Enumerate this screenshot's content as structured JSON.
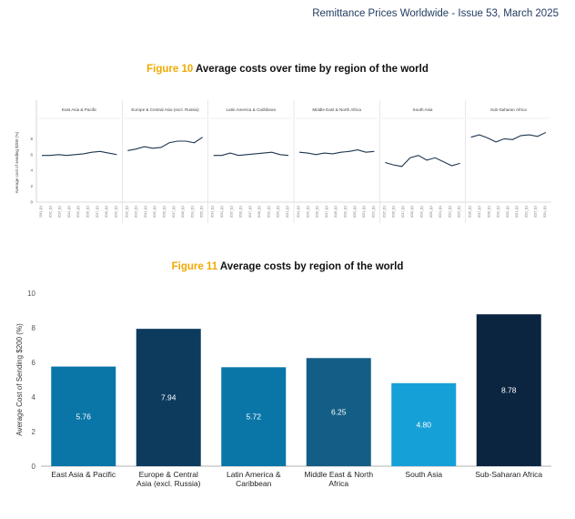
{
  "header": {
    "text": "Remittance Prices Worldwide - Issue 53, March 2025"
  },
  "figure10": {
    "number": "Figure 10",
    "title": "Average costs over time by region of the world"
  },
  "figure11": {
    "number": "Figure 11",
    "title": "Average costs by region of the world"
  },
  "chart_data": [
    {
      "type": "line",
      "title": "Average costs over time by region of the world",
      "ylabel": "Average cost of sending $200 (%)",
      "ylim": [
        0,
        10
      ],
      "yticks": [
        0,
        2,
        4,
        6,
        8
      ],
      "x_ticks": [
        "2011_Q1",
        "2012_Q1",
        "2013_Q1",
        "2014_Q1",
        "2015_Q1",
        "2016_Q1",
        "2017_Q1",
        "2018_Q1",
        "2019_Q1",
        "2020_Q1",
        "2021_Q1",
        "2022_Q1",
        "2023_Q1",
        "2024_Q1",
        "2025_Q1"
      ],
      "series": [
        {
          "name": "East Asia & Pacific",
          "values": [
            5.9,
            5.9,
            6.0,
            5.9,
            6.0,
            6.1,
            6.3,
            6.4,
            6.2,
            6.0
          ]
        },
        {
          "name": "Europe & Central Asia (excl. Russia)",
          "values": [
            6.5,
            6.7,
            7.0,
            6.8,
            6.9,
            7.5,
            7.7,
            7.7,
            7.5,
            8.2
          ]
        },
        {
          "name": "Latin America & Caribbean",
          "values": [
            5.9,
            5.9,
            6.2,
            5.9,
            6.0,
            6.1,
            6.2,
            6.3,
            6.0,
            5.9
          ]
        },
        {
          "name": "Middle East & North Africa",
          "values": [
            6.3,
            6.2,
            6.0,
            6.2,
            6.1,
            6.3,
            6.4,
            6.6,
            6.3,
            6.4
          ]
        },
        {
          "name": "South Asia",
          "values": [
            5.0,
            4.7,
            4.5,
            5.6,
            5.9,
            5.3,
            5.6,
            5.1,
            4.6,
            4.9
          ]
        },
        {
          "name": "Sub-Saharan Africa",
          "values": [
            8.2,
            8.5,
            8.1,
            7.6,
            8.0,
            7.9,
            8.4,
            8.5,
            8.3,
            8.8
          ]
        }
      ]
    },
    {
      "type": "bar",
      "title": "Average costs by region of the world",
      "ylabel": "Average Cost of Sending $200 (%)",
      "ylim": [
        0,
        10
      ],
      "yticks": [
        0,
        2,
        4,
        6,
        8,
        10
      ],
      "categories": [
        [
          "East Asia & Pacific"
        ],
        [
          "Europe & Central",
          "Asia (excl. Russia)"
        ],
        [
          "Latin America &",
          "Caribbean"
        ],
        [
          "Middle East & North",
          "Africa"
        ],
        [
          "South Asia"
        ],
        [
          "Sub-Saharan Africa"
        ]
      ],
      "values": [
        5.76,
        7.94,
        5.72,
        6.25,
        4.8,
        8.78
      ],
      "value_labels": [
        "5.76",
        "7.94",
        "5.72",
        "6.25",
        "4.80",
        "8.78"
      ],
      "colors": [
        "#0a76a8",
        "#0c3b5e",
        "#0a76a8",
        "#135e86",
        "#16a0d8",
        "#0b2440"
      ]
    }
  ]
}
